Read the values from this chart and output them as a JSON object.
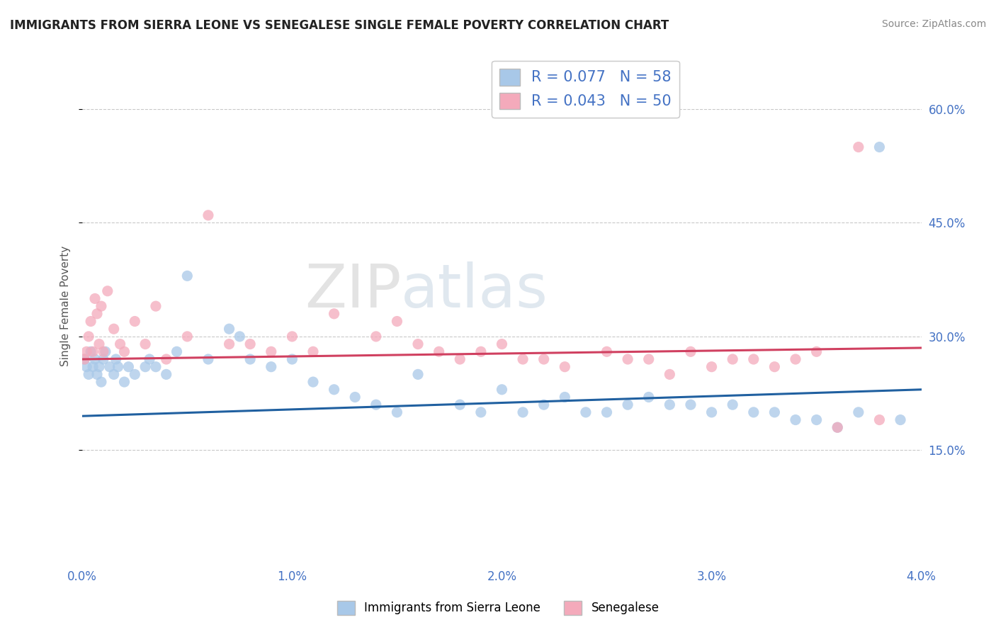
{
  "title": "IMMIGRANTS FROM SIERRA LEONE VS SENEGALESE SINGLE FEMALE POVERTY CORRELATION CHART",
  "source": "Source: ZipAtlas.com",
  "ylabel": "Single Female Poverty",
  "r_sierra": 0.077,
  "n_sierra": 58,
  "r_senegalese": 0.043,
  "n_senegalese": 50,
  "xlim": [
    0.0,
    0.04
  ],
  "ylim": [
    0.0,
    0.68
  ],
  "yticks": [
    0.15,
    0.3,
    0.45,
    0.6
  ],
  "ytick_labels": [
    "15.0%",
    "30.0%",
    "45.0%",
    "60.0%"
  ],
  "xticks": [
    0.0,
    0.01,
    0.02,
    0.03,
    0.04
  ],
  "xtick_labels": [
    "0.0%",
    "1.0%",
    "2.0%",
    "3.0%",
    "4.0%"
  ],
  "color_sierra": "#A8C8E8",
  "color_senegalese": "#F4AABB",
  "color_sierra_line": "#2060A0",
  "color_senegalese_line": "#D04060",
  "legend_label_sierra": "Immigrants from Sierra Leone",
  "legend_label_senegalese": "Senegalese",
  "watermark_zip": "ZIP",
  "watermark_atlas": "atlas",
  "sierra_x": [
    0.0001,
    0.0002,
    0.0003,
    0.0004,
    0.0005,
    0.0006,
    0.0007,
    0.0008,
    0.0009,
    0.001,
    0.0011,
    0.0013,
    0.0015,
    0.0016,
    0.0017,
    0.002,
    0.0022,
    0.0025,
    0.003,
    0.0032,
    0.0035,
    0.004,
    0.0045,
    0.005,
    0.006,
    0.007,
    0.0075,
    0.008,
    0.009,
    0.01,
    0.011,
    0.012,
    0.013,
    0.014,
    0.015,
    0.016,
    0.018,
    0.019,
    0.02,
    0.021,
    0.022,
    0.023,
    0.024,
    0.025,
    0.026,
    0.027,
    0.028,
    0.029,
    0.03,
    0.031,
    0.032,
    0.033,
    0.034,
    0.035,
    0.036,
    0.037,
    0.038,
    0.039
  ],
  "sierra_y": [
    0.27,
    0.26,
    0.25,
    0.28,
    0.26,
    0.27,
    0.25,
    0.26,
    0.24,
    0.27,
    0.28,
    0.26,
    0.25,
    0.27,
    0.26,
    0.24,
    0.26,
    0.25,
    0.26,
    0.27,
    0.26,
    0.25,
    0.28,
    0.38,
    0.27,
    0.31,
    0.3,
    0.27,
    0.26,
    0.27,
    0.24,
    0.23,
    0.22,
    0.21,
    0.2,
    0.25,
    0.21,
    0.2,
    0.23,
    0.2,
    0.21,
    0.22,
    0.2,
    0.2,
    0.21,
    0.22,
    0.21,
    0.21,
    0.2,
    0.21,
    0.2,
    0.2,
    0.19,
    0.19,
    0.18,
    0.2,
    0.55,
    0.19
  ],
  "senegalese_x": [
    0.0001,
    0.0002,
    0.0003,
    0.0004,
    0.0005,
    0.0006,
    0.0007,
    0.0008,
    0.0009,
    0.001,
    0.0012,
    0.0015,
    0.0018,
    0.002,
    0.0025,
    0.003,
    0.0035,
    0.004,
    0.005,
    0.006,
    0.007,
    0.008,
    0.009,
    0.01,
    0.011,
    0.012,
    0.014,
    0.015,
    0.016,
    0.017,
    0.018,
    0.019,
    0.02,
    0.021,
    0.022,
    0.023,
    0.025,
    0.026,
    0.027,
    0.028,
    0.029,
    0.03,
    0.031,
    0.032,
    0.033,
    0.034,
    0.035,
    0.036,
    0.037,
    0.038
  ],
  "senegalese_y": [
    0.27,
    0.28,
    0.3,
    0.32,
    0.28,
    0.35,
    0.33,
    0.29,
    0.34,
    0.28,
    0.36,
    0.31,
    0.29,
    0.28,
    0.32,
    0.29,
    0.34,
    0.27,
    0.3,
    0.46,
    0.29,
    0.29,
    0.28,
    0.3,
    0.28,
    0.33,
    0.3,
    0.32,
    0.29,
    0.28,
    0.27,
    0.28,
    0.29,
    0.27,
    0.27,
    0.26,
    0.28,
    0.27,
    0.27,
    0.25,
    0.28,
    0.26,
    0.27,
    0.27,
    0.26,
    0.27,
    0.28,
    0.18,
    0.55,
    0.19
  ]
}
